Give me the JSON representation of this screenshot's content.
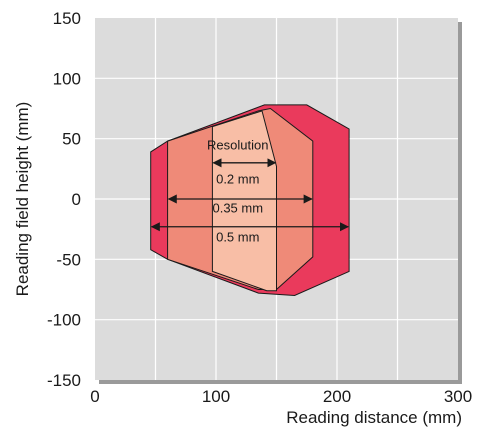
{
  "chart_data": {
    "type": "area",
    "xlabel": "Reading distance (mm)",
    "ylabel": "Reading field height (mm)",
    "xlim": [
      0,
      300
    ],
    "ylim": [
      -150,
      150
    ],
    "x_ticks": [
      0,
      100,
      200,
      300
    ],
    "y_ticks": [
      150,
      100,
      50,
      0,
      -50,
      -100,
      -150
    ],
    "grid": true,
    "colors": {
      "plot_bg": "#dcdcdc",
      "grid": "#ffffff",
      "shadow": "#9a9a9a",
      "zone_0_5": "#ea3a5c",
      "zone_0_35": "#ef8a78",
      "zone_0_2": "#f8bea6",
      "outline": "#1a1a1a"
    },
    "zones": [
      {
        "label": "0.5 mm",
        "polygon": [
          [
            46,
            -42
          ],
          [
            60,
            -50
          ],
          [
            135,
            -78
          ],
          [
            165,
            -80
          ],
          [
            210,
            -60
          ],
          [
            210,
            58
          ],
          [
            175,
            78
          ],
          [
            140,
            78
          ],
          [
            60,
            48
          ],
          [
            46,
            39
          ]
        ],
        "arrow": {
          "y": -23,
          "x1": 46,
          "x2": 210
        },
        "label_pos": [
          118,
          -31
        ]
      },
      {
        "label": "0.35 mm",
        "polygon": [
          [
            60,
            -50
          ],
          [
            135,
            -75
          ],
          [
            150,
            -75
          ],
          [
            180,
            -48
          ],
          [
            180,
            48
          ],
          [
            145,
            75
          ],
          [
            135,
            73
          ],
          [
            60,
            48
          ]
        ],
        "arrow": {
          "y": 0,
          "x1": 60,
          "x2": 180
        },
        "label_pos": [
          118,
          -7
        ]
      },
      {
        "label": "0.2 mm",
        "polygon": [
          [
            97,
            -60
          ],
          [
            142,
            -76
          ],
          [
            150,
            -76
          ],
          [
            150,
            27
          ],
          [
            138,
            73
          ],
          [
            97,
            60
          ]
        ],
        "arrow": {
          "y": 30,
          "x1": 97,
          "x2": 150
        },
        "label_pos": [
          118,
          17
        ]
      }
    ],
    "annotations": [
      {
        "text": "Resolution",
        "pos": [
          118,
          45
        ]
      }
    ]
  }
}
